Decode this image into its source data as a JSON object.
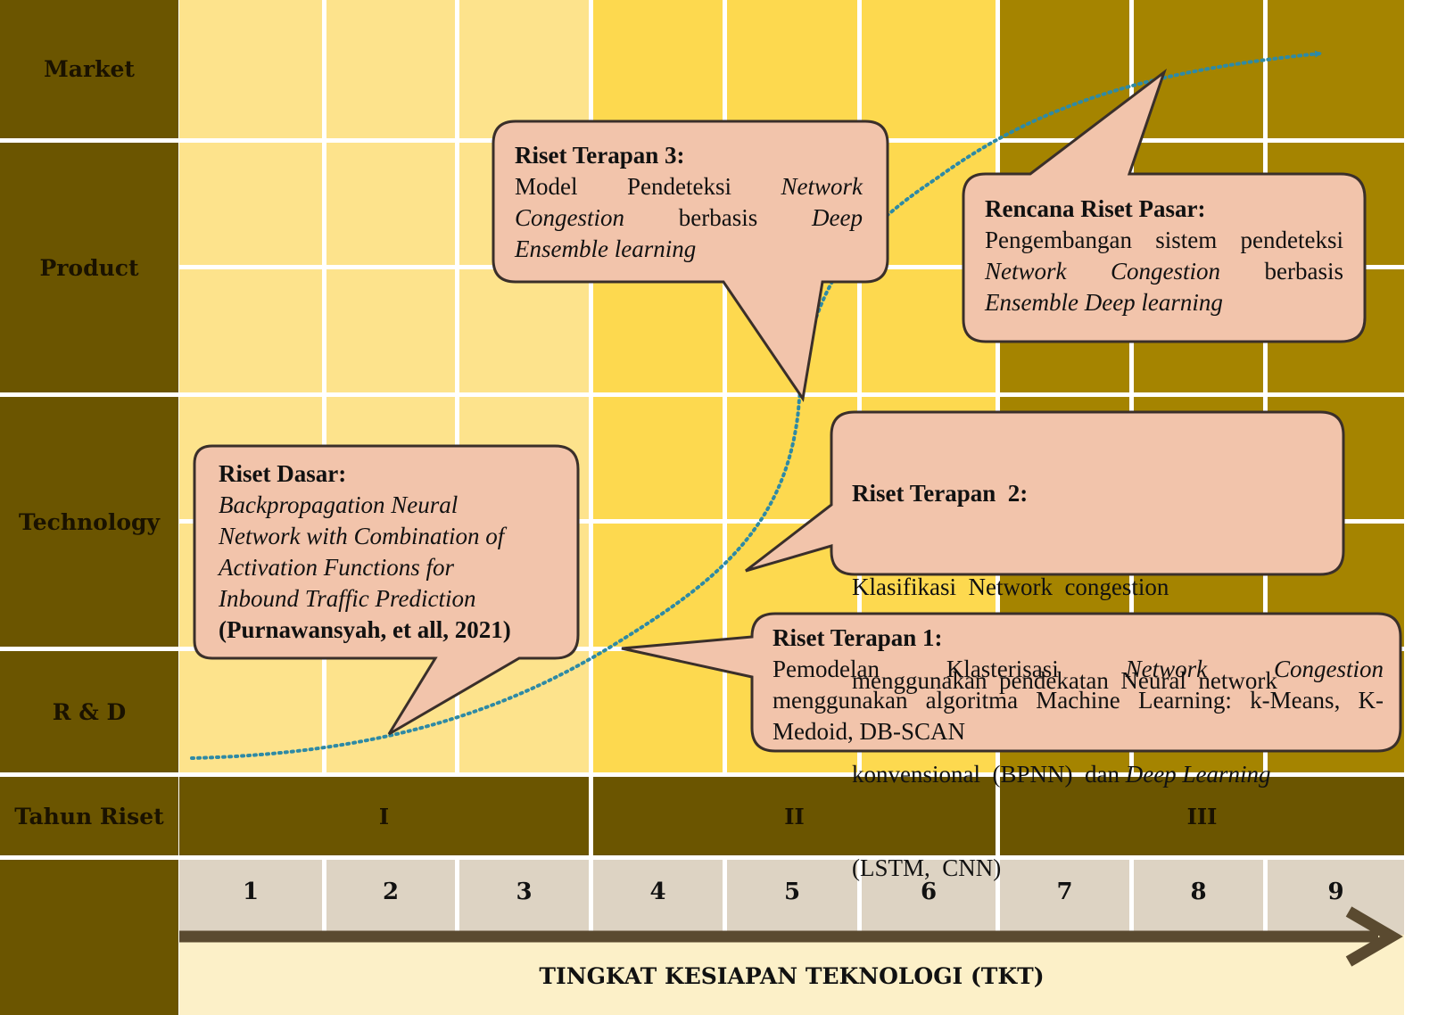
{
  "rows": {
    "market": "Market",
    "product": "Product",
    "technology": "Technology",
    "rnd": "R & D",
    "tahun_riset": "Tahun Riset"
  },
  "years": [
    "I",
    "II",
    "III"
  ],
  "tkt_levels": [
    "1",
    "2",
    "3",
    "4",
    "5",
    "6",
    "7",
    "8",
    "9"
  ],
  "axis_title": "TINGKAT KESIAPAN TEKNOLOGI (TKT)",
  "colors": {
    "label_bg": "#6b5500",
    "zone1": "#fde38c",
    "zone2": "#fdd94f",
    "zone3": "#a58400",
    "bubble": "#f2c4ab",
    "curve": "#2e8aa5",
    "tkt_bg": "#ddd3c3",
    "axis_band": "#fcf0c8",
    "arrow": "#5a4a30"
  },
  "bubbles": {
    "riset_dasar": {
      "title": "Riset Dasar:",
      "line1": "Backpropagation Neural",
      "line2": "Network with Combination of",
      "line3": "Activation Functions for",
      "line4": "Inbound Traffic Prediction",
      "citation": "(Purnawansyah,  et all, 2021)"
    },
    "riset_terapan_3": {
      "title": "Riset Terapan  3:",
      "w1": "Model",
      "w2": "Pendeteksi",
      "w3": "Network",
      "w4": "Congestion",
      "w5": "berbasis",
      "w6": "Deep",
      "line3": "Ensemble learning"
    },
    "rencana_riset_pasar": {
      "title": "Rencana Riset Pasar:",
      "line1": "Pengembangan sistem pendeteksi",
      "w1": "Network",
      "w2": "Congestion",
      "w3": "berbasis",
      "line3": "Ensemble Deep learning"
    },
    "riset_terapan_2": {
      "title": "Riset Terapan  2:",
      "line1": "Klasifikasi  Network  congestion",
      "line2": "menggunakan  pendekatan  Neural  network",
      "line3a": "konvensional  (BPNN)  dan ",
      "line3b": "Deep Learning",
      "line4": "(LSTM,  CNN)"
    },
    "riset_terapan_1": {
      "title": "Riset Terapan  1:",
      "w1": "Pemodelan",
      "w2": "Klasterisasi",
      "w3": "Network",
      "w4": "Congestion",
      "line2": "menggunakan algoritma Machine Learning: k-Means, K-",
      "line3": "Medoid, DB-SCAN"
    }
  }
}
